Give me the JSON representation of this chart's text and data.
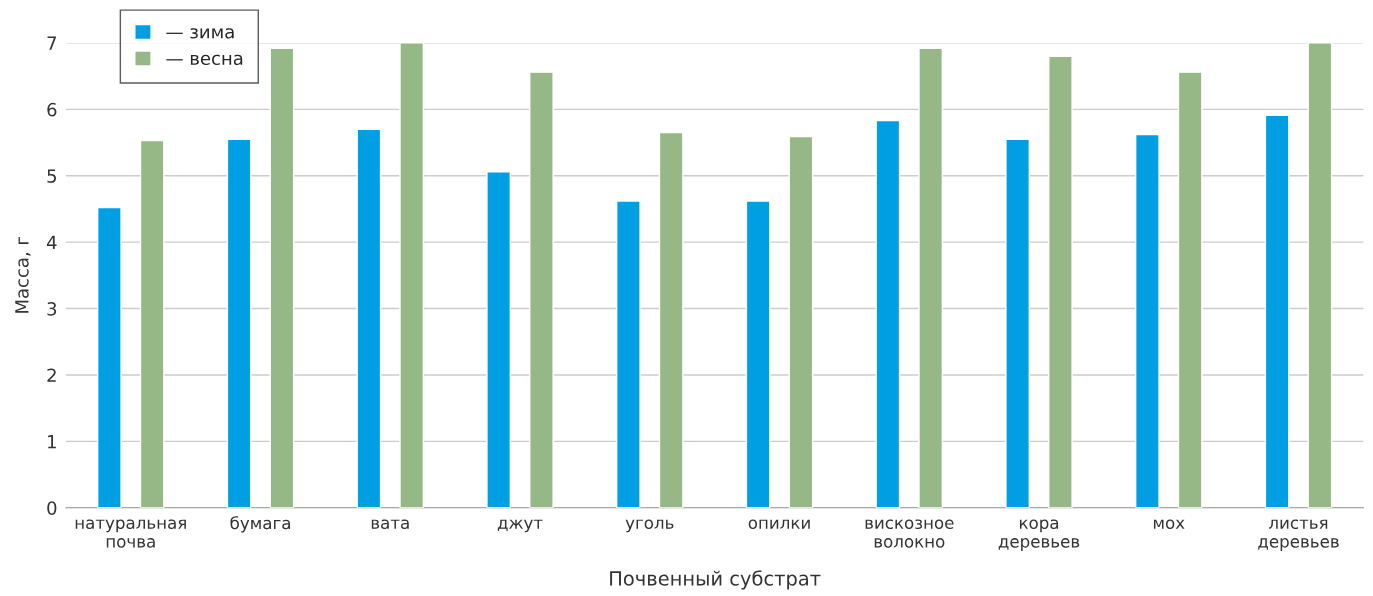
{
  "chart_data": {
    "type": "bar",
    "xlabel": "Почвенный субстрат",
    "ylabel": "Масса, г",
    "categories": [
      "натуральная\nпочва",
      "бумага",
      "вата",
      "джут",
      "уголь",
      "опилки",
      "вискозное\nволокно",
      "кора\nдеревьев",
      "мох",
      "листья\nдеревьев"
    ],
    "series": [
      {
        "name": "— зима",
        "color": "#009fe3",
        "values": [
          4.52,
          5.55,
          5.7,
          5.06,
          4.62,
          4.62,
          5.83,
          5.55,
          5.62,
          5.91
        ]
      },
      {
        "name": "— весна",
        "color": "#96b886",
        "values": [
          5.53,
          6.92,
          7.0,
          6.56,
          5.65,
          5.59,
          6.92,
          6.8,
          6.56,
          7.0
        ]
      }
    ],
    "ylim": [
      0,
      7
    ],
    "yticks": [
      0,
      1,
      2,
      3,
      4,
      5,
      6,
      7
    ],
    "grid": "y",
    "legend": "top left"
  }
}
